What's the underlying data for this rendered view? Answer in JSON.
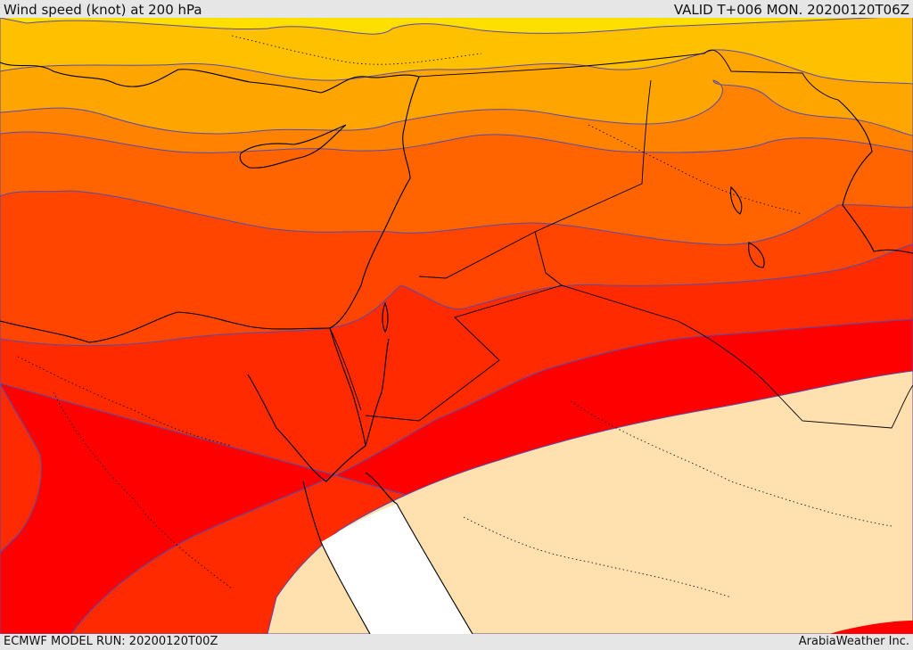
{
  "header": {
    "title": "Wind speed (knot) at 200 hPa",
    "valid": "VALID T+006 MON. 20200120T06Z"
  },
  "footer": {
    "model_run": "ECMWF MODEL RUN: 20200120T00Z",
    "credit": "ArabiaWeather Inc."
  },
  "colors": {
    "band_yellow": "#ffdf00",
    "band_amber": "#ffc000",
    "band_orange_light": "#ffa500",
    "band_orange": "#ff8200",
    "band_orange_dark": "#ff6400",
    "band_red_orange": "#ff4500",
    "band_red_light": "#ff2a00",
    "band_red": "#ff0000",
    "band_calm": "#ffe0ae",
    "band_white": "#ffffff",
    "coast_line": "#000000",
    "contour_line": "#5a4aa8"
  }
}
